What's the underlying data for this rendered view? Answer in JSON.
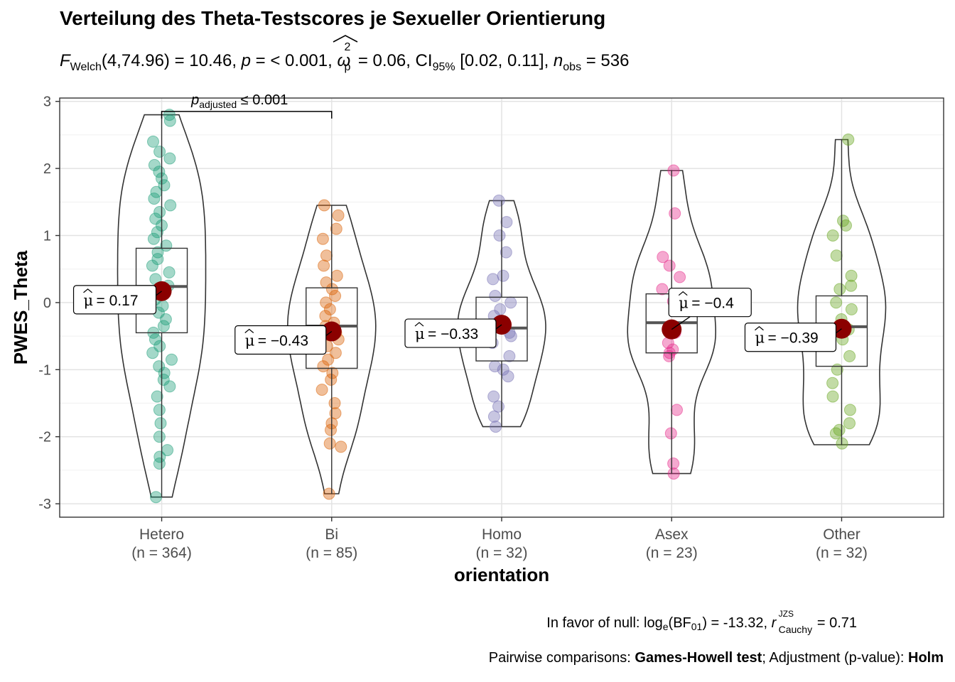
{
  "chart_data": {
    "type": "violin-box-scatter",
    "title": "Verteilung des Theta-Testscores je Sexueller Orientierung",
    "subtitle": {
      "test_label": "F",
      "test_sub": "Welch",
      "test_args": "(4,74.96) = 10.46, ",
      "p_label": "p",
      "p_value": " = < 0.001, ",
      "effect_symbol": "ω",
      "effect_sup": "2",
      "effect_sub": "p",
      "effect_value": " = 0.06, CI",
      "ci_sub": "95%",
      "ci_value": " [0.02, 0.11], ",
      "n_label": "n",
      "n_sub": "obs",
      "n_value": " = 536"
    },
    "xlabel": "orientation",
    "ylabel": "PWES_Theta",
    "ylim": [
      -3.2,
      3.05
    ],
    "yticks": [
      -3,
      -2,
      -1,
      0,
      1,
      2,
      3
    ],
    "ytick_labels": [
      "-3",
      "-2",
      "-1",
      "0",
      "1",
      "2",
      "3"
    ],
    "grid": true,
    "categories": [
      {
        "name": "Hetero",
        "n_label": "(n = 364)",
        "color": "#1b9e77",
        "mean": 0.17,
        "mean_label": "= 0.17",
        "box": {
          "q1": -0.45,
          "median": 0.24,
          "q3": 0.81
        },
        "whisker": [
          -2.9,
          2.8
        ],
        "violin_range": [
          -2.9,
          2.8
        ],
        "points": [
          2.8,
          2.71,
          2.4,
          2.25,
          2.15,
          2.05,
          1.95,
          1.85,
          1.75,
          1.65,
          1.55,
          1.45,
          1.35,
          1.25,
          1.15,
          1.05,
          0.95,
          0.85,
          0.75,
          0.65,
          0.55,
          0.45,
          0.35,
          0.25,
          0.15,
          0.05,
          -0.05,
          -0.15,
          -0.25,
          -0.35,
          -0.45,
          -0.55,
          -0.65,
          -0.75,
          -0.85,
          -0.95,
          -1.05,
          -1.15,
          -1.25,
          -1.4,
          -1.6,
          -1.8,
          -2.0,
          -2.2,
          -2.3,
          -2.4,
          -2.9
        ]
      },
      {
        "name": "Bi",
        "n_label": "(n = 85)",
        "color": "#d95f02",
        "mean": -0.43,
        "mean_label": "= −0.43",
        "box": {
          "q1": -0.98,
          "median": -0.35,
          "q3": 0.22
        },
        "whisker": [
          -2.85,
          1.45
        ],
        "violin_range": [
          -2.85,
          1.45
        ],
        "points": [
          1.45,
          1.3,
          1.1,
          0.95,
          0.7,
          0.55,
          0.4,
          0.3,
          0.2,
          0.1,
          0.0,
          -0.1,
          -0.2,
          -0.3,
          -0.35,
          -0.45,
          -0.55,
          -0.65,
          -0.75,
          -0.85,
          -0.95,
          -1.05,
          -1.15,
          -1.3,
          -1.5,
          -1.65,
          -1.8,
          -1.9,
          -2.1,
          -2.15,
          -2.85
        ]
      },
      {
        "name": "Homo",
        "n_label": "(n = 32)",
        "color": "#7570b3",
        "mean": -0.33,
        "mean_label": "= −0.33",
        "box": {
          "q1": -0.87,
          "median": -0.38,
          "q3": 0.08
        },
        "whisker": [
          -1.85,
          1.52
        ],
        "violin_range": [
          -1.85,
          1.52
        ],
        "points": [
          1.52,
          1.2,
          1.0,
          0.75,
          0.4,
          0.35,
          0.1,
          0.0,
          -0.1,
          -0.2,
          -0.3,
          -0.45,
          -0.5,
          -0.6,
          -0.8,
          -0.95,
          -1.0,
          -1.1,
          -1.4,
          -1.55,
          -1.7,
          -1.85
        ]
      },
      {
        "name": "Asex",
        "n_label": "(n = 23)",
        "color": "#e7298a",
        "mean": -0.4,
        "mean_label": "= −0.4",
        "box": {
          "q1": -0.75,
          "median": -0.3,
          "q3": 0.13
        },
        "whisker": [
          -2.55,
          1.97
        ],
        "violin_range": [
          -2.55,
          1.97
        ],
        "points": [
          1.97,
          1.33,
          0.68,
          0.55,
          0.38,
          0.2,
          0.02,
          -0.45,
          -0.6,
          -0.7,
          -0.75,
          -0.8,
          -1.6,
          -1.95,
          -2.4,
          -2.55
        ]
      },
      {
        "name": "Other",
        "n_label": "(n = 32)",
        "color": "#66a61e",
        "mean": -0.39,
        "mean_label": "= −0.39",
        "box": {
          "q1": -0.95,
          "median": -0.36,
          "q3": 0.1
        },
        "whisker": [
          -2.12,
          2.43
        ],
        "violin_range": [
          -2.12,
          2.43
        ],
        "points": [
          2.43,
          1.22,
          1.15,
          1.0,
          0.7,
          0.4,
          0.25,
          0.2,
          0.0,
          -0.1,
          -0.25,
          -0.4,
          -0.55,
          -0.8,
          -1.0,
          -1.2,
          -1.4,
          -1.6,
          -1.8,
          -1.9,
          -1.95,
          -2.1
        ]
      }
    ],
    "pairwise": {
      "from": "Hetero",
      "to": "Bi",
      "y": 2.85,
      "label_main": "p",
      "label_sub": "adjusted",
      "label_value": " ≤ 0.001"
    },
    "caption1": {
      "prefix": "In favor of null: log",
      "log_sub": "e",
      "bf_open": "(BF",
      "bf_sub": "01",
      "bf_value": ") = -13.32, ",
      "r_label": "r",
      "r_sup": "JZS",
      "r_sub": "Cauchy",
      "r_value": " = 0.71"
    },
    "caption2": {
      "prefix": "Pairwise comparisons: ",
      "test": "Games-Howell test",
      "middle": "; Adjustment (p-value): ",
      "adjust": "Holm"
    },
    "mean_symbol": "μ",
    "mean_color": "#8b0000"
  }
}
